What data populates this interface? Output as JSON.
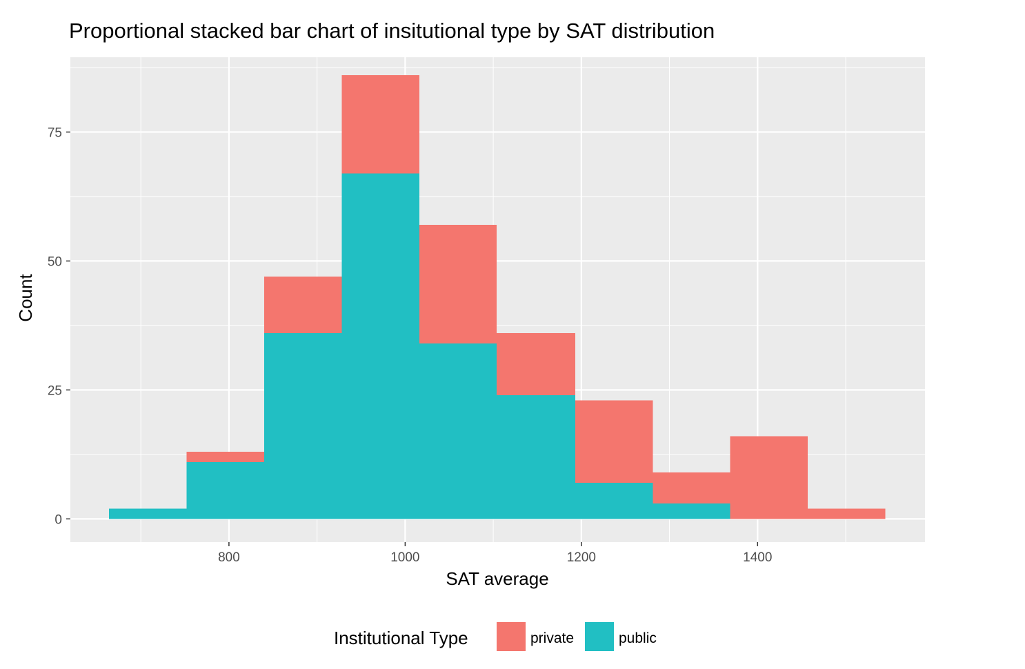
{
  "chart_data": {
    "type": "bar",
    "stacked": true,
    "title": "Proportional stacked bar chart of insitutional type by SAT distribution",
    "xlabel": "SAT average",
    "ylabel": "Count",
    "xlim": [
      620,
      1590
    ],
    "ylim": [
      -4.5,
      89.5
    ],
    "xticks": [
      800,
      1000,
      1200,
      1400
    ],
    "yticks": [
      0,
      25,
      50,
      75
    ],
    "grid": true,
    "bins": [
      {
        "x0": 664,
        "x1": 752
      },
      {
        "x0": 752,
        "x1": 840
      },
      {
        "x0": 840,
        "x1": 928
      },
      {
        "x0": 928,
        "x1": 1016
      },
      {
        "x0": 1016,
        "x1": 1104
      },
      {
        "x0": 1104,
        "x1": 1193
      },
      {
        "x0": 1193,
        "x1": 1281
      },
      {
        "x0": 1281,
        "x1": 1369
      },
      {
        "x0": 1369,
        "x1": 1457
      },
      {
        "x0": 1457,
        "x1": 1545
      }
    ],
    "series": [
      {
        "name": "public",
        "color": "#21BFC3",
        "values": [
          2,
          11,
          36,
          67,
          34,
          24,
          7,
          3,
          0,
          0
        ]
      },
      {
        "name": "private",
        "color": "#F4766E",
        "values": [
          0,
          2,
          11,
          19,
          23,
          12,
          16,
          6,
          16,
          2
        ]
      }
    ],
    "legend": {
      "title": "Institutional Type",
      "position": "bottom",
      "items": [
        {
          "label": "private",
          "color": "#F4766E"
        },
        {
          "label": "public",
          "color": "#21BFC3"
        }
      ]
    },
    "panel_color": "#EBEBEB",
    "grid_color": "#FFFFFF"
  }
}
